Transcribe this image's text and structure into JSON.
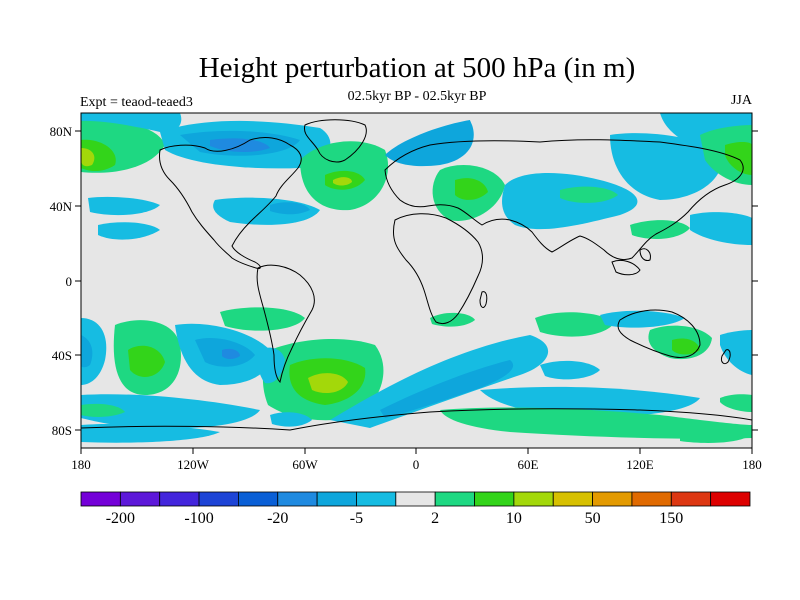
{
  "title": "Height perturbation at 500 hPa (in m)",
  "subtitle": "02.5kyr BP - 02.5kyr BP",
  "expt_label": "Expt = teaod-teaed3",
  "season": "JJA",
  "lat_ticks": [
    "80N",
    "40N",
    "0",
    "40S",
    "80S"
  ],
  "lon_ticks": [
    "180",
    "120W",
    "60W",
    "0",
    "60E",
    "120E",
    "180"
  ],
  "colorbar": {
    "colors": [
      "#7400d8",
      "#5d18d9",
      "#4325dc",
      "#1d44d6",
      "#0a5fd6",
      "#1f8ae0",
      "#0ea6dc",
      "#16bce2",
      "#e6e6e6",
      "#1ed882",
      "#33d41a",
      "#a3d80a",
      "#d7c000",
      "#e39a00",
      "#e06a00",
      "#dd3712",
      "#dd0000"
    ],
    "labels": [
      "-200",
      "-100",
      "-20",
      "-5",
      "2",
      "10",
      "50",
      "150"
    ]
  },
  "palette": {
    "neutral": "#e6e6e6",
    "neg_light": "#16bce2",
    "neg_mid": "#0ea6dc",
    "neg_dark": "#1f8ae0",
    "pos_light": "#1ed882",
    "pos_mid": "#33d41a",
    "pos_strong": "#a3d80a"
  }
}
